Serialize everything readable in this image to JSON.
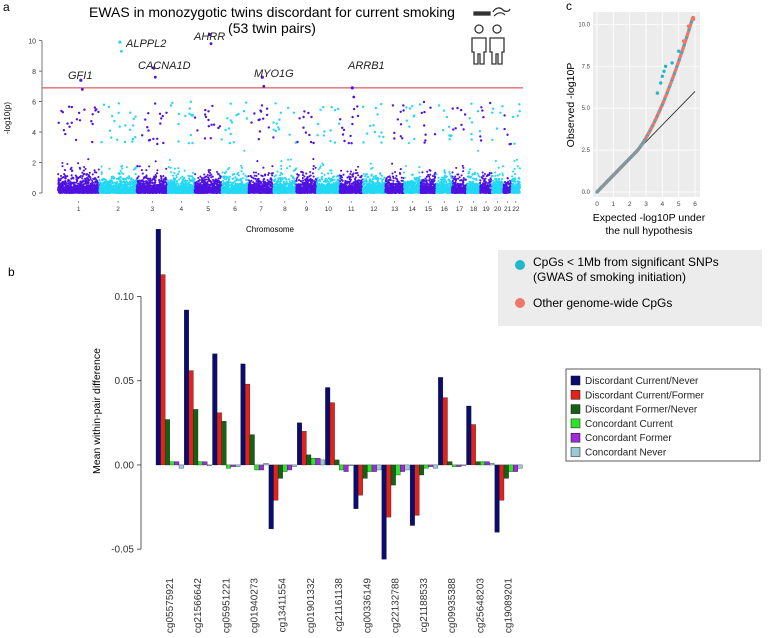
{
  "panel_labels": {
    "a": "a",
    "b": "b",
    "c": "c"
  },
  "colors": {
    "dark_purple": "#4f12e0",
    "cyan": "#22d8f2",
    "sig_line": "#d9333f",
    "qq_grey_bg": "#ececec",
    "qq_teal": "#1fb8c8",
    "qq_salmon": "#ef766b",
    "legend_bg": "#ececec",
    "bar_colors": [
      "#0c0c6e",
      "#e0231b",
      "#156214",
      "#2fe32a",
      "#9d2bdb",
      "#9bc9d8"
    ]
  },
  "legend_c": {
    "items": [
      {
        "label": "CpGs < 1Mb from significant SNPs",
        "sub": "(GWAS of smoking initiation)",
        "color": "#1fb8c8"
      },
      {
        "label": "Other genome-wide CpGs",
        "sub": "",
        "color": "#ef766b"
      }
    ]
  },
  "chart_data": [
    {
      "type": "scatter",
      "title": "EWAS in monozygotic twins discordant for current smoking",
      "subtitle": "(53 twin pairs)",
      "xlabel": "Chromosome",
      "ylabel": "-log10(p)",
      "ylim": [
        0,
        10.5
      ],
      "y_ticks": [
        0,
        2,
        4,
        6,
        8,
        10
      ],
      "significance_threshold": 6.9,
      "chromosomes": [
        "1",
        "2",
        "3",
        "4",
        "5",
        "6",
        "7",
        "8",
        "9",
        "10",
        "11",
        "12",
        "13",
        "14",
        "15",
        "16",
        "17",
        "18",
        "19",
        "20",
        "21",
        "22"
      ],
      "chromosome_weights": [
        10,
        9,
        7.5,
        6.5,
        6.5,
        6.5,
        6,
        5.5,
        5,
        5.5,
        5.5,
        5.5,
        4.5,
        4,
        3.8,
        3.8,
        3.6,
        3.2,
        2.8,
        2.8,
        2,
        2
      ],
      "labeled_peaks": [
        {
          "gene": "GFI1",
          "chr": "1",
          "value": 7.4
        },
        {
          "gene": "ALPPL2",
          "chr": "2",
          "value": 9.9
        },
        {
          "gene": "CACNA1D",
          "chr": "3",
          "value": 8.2
        },
        {
          "gene": "AHRR",
          "chr": "5",
          "value": 10.4
        },
        {
          "gene": "MYO1G",
          "chr": "7",
          "value": 7.6
        },
        {
          "gene": "ARRB1",
          "chr": "11",
          "value": 6.9
        }
      ]
    },
    {
      "type": "bar",
      "xlabel": "",
      "ylabel": "Mean within-pair difference",
      "ylim": [
        -0.06,
        0.13
      ],
      "y_ticks": [
        -0.05,
        0.0,
        0.05,
        0.1
      ],
      "y_tick_labels": [
        "-0.05",
        "0.00",
        "0.05",
        "0.10"
      ],
      "categories": [
        "cg05575921",
        "cg21566642",
        "cg05951221",
        "cg01940273",
        "cg13411554",
        "cg01901332",
        "cg21161138",
        "cg00336149",
        "cg22132788",
        "cg21188533",
        "cg09935388",
        "cg25648203",
        "cg19089201"
      ],
      "series": [
        {
          "name": "Discordant Current/Never",
          "values": [
            0.14,
            0.092,
            0.066,
            0.06,
            -0.038,
            0.025,
            0.046,
            -0.026,
            -0.056,
            -0.036,
            0.052,
            0.035,
            -0.04
          ]
        },
        {
          "name": "Discordant Current/Former",
          "values": [
            0.113,
            0.056,
            0.031,
            0.048,
            -0.021,
            0.02,
            0.037,
            -0.018,
            -0.031,
            -0.03,
            0.04,
            0.024,
            -0.021
          ]
        },
        {
          "name": "Discordant Former/Never",
          "values": [
            0.027,
            0.033,
            0.026,
            0.018,
            -0.008,
            0.006,
            0.003,
            -0.008,
            -0.012,
            -0.006,
            0.002,
            0.002,
            -0.008
          ]
        },
        {
          "name": "Concordant Current",
          "values": [
            0.002,
            0.002,
            -0.002,
            -0.003,
            -0.004,
            0.004,
            -0.003,
            -0.004,
            -0.006,
            -0.002,
            -0.001,
            0.002,
            -0.004
          ]
        },
        {
          "name": "Concordant Former",
          "values": [
            0.002,
            0.002,
            -0.001,
            -0.003,
            -0.003,
            0.004,
            -0.004,
            -0.004,
            -0.004,
            -0.001,
            -0.001,
            0.002,
            -0.004
          ]
        },
        {
          "name": "Concordant Never",
          "values": [
            -0.002,
            0.0,
            -0.001,
            0.001,
            -0.001,
            0.003,
            0.0,
            -0.003,
            -0.003,
            -0.002,
            0.0,
            0.001,
            -0.002
          ]
        }
      ]
    },
    {
      "type": "scatter",
      "title": "",
      "xlabel": "Expected -log10P under",
      "xlabel2": "the null hypothesis",
      "ylabel": "Observed -log10P",
      "xlim": [
        0,
        6
      ],
      "ylim": [
        0,
        10.5
      ],
      "x_ticks": [
        0,
        1,
        2,
        3,
        4,
        5,
        6
      ],
      "y_ticks": [
        0.0,
        2.5,
        5.0,
        7.5,
        10.0
      ],
      "y_tick_labels": [
        "0.0",
        "2.5",
        "5.0",
        "7.5",
        "10.0"
      ],
      "reference_line": "y = x"
    }
  ]
}
